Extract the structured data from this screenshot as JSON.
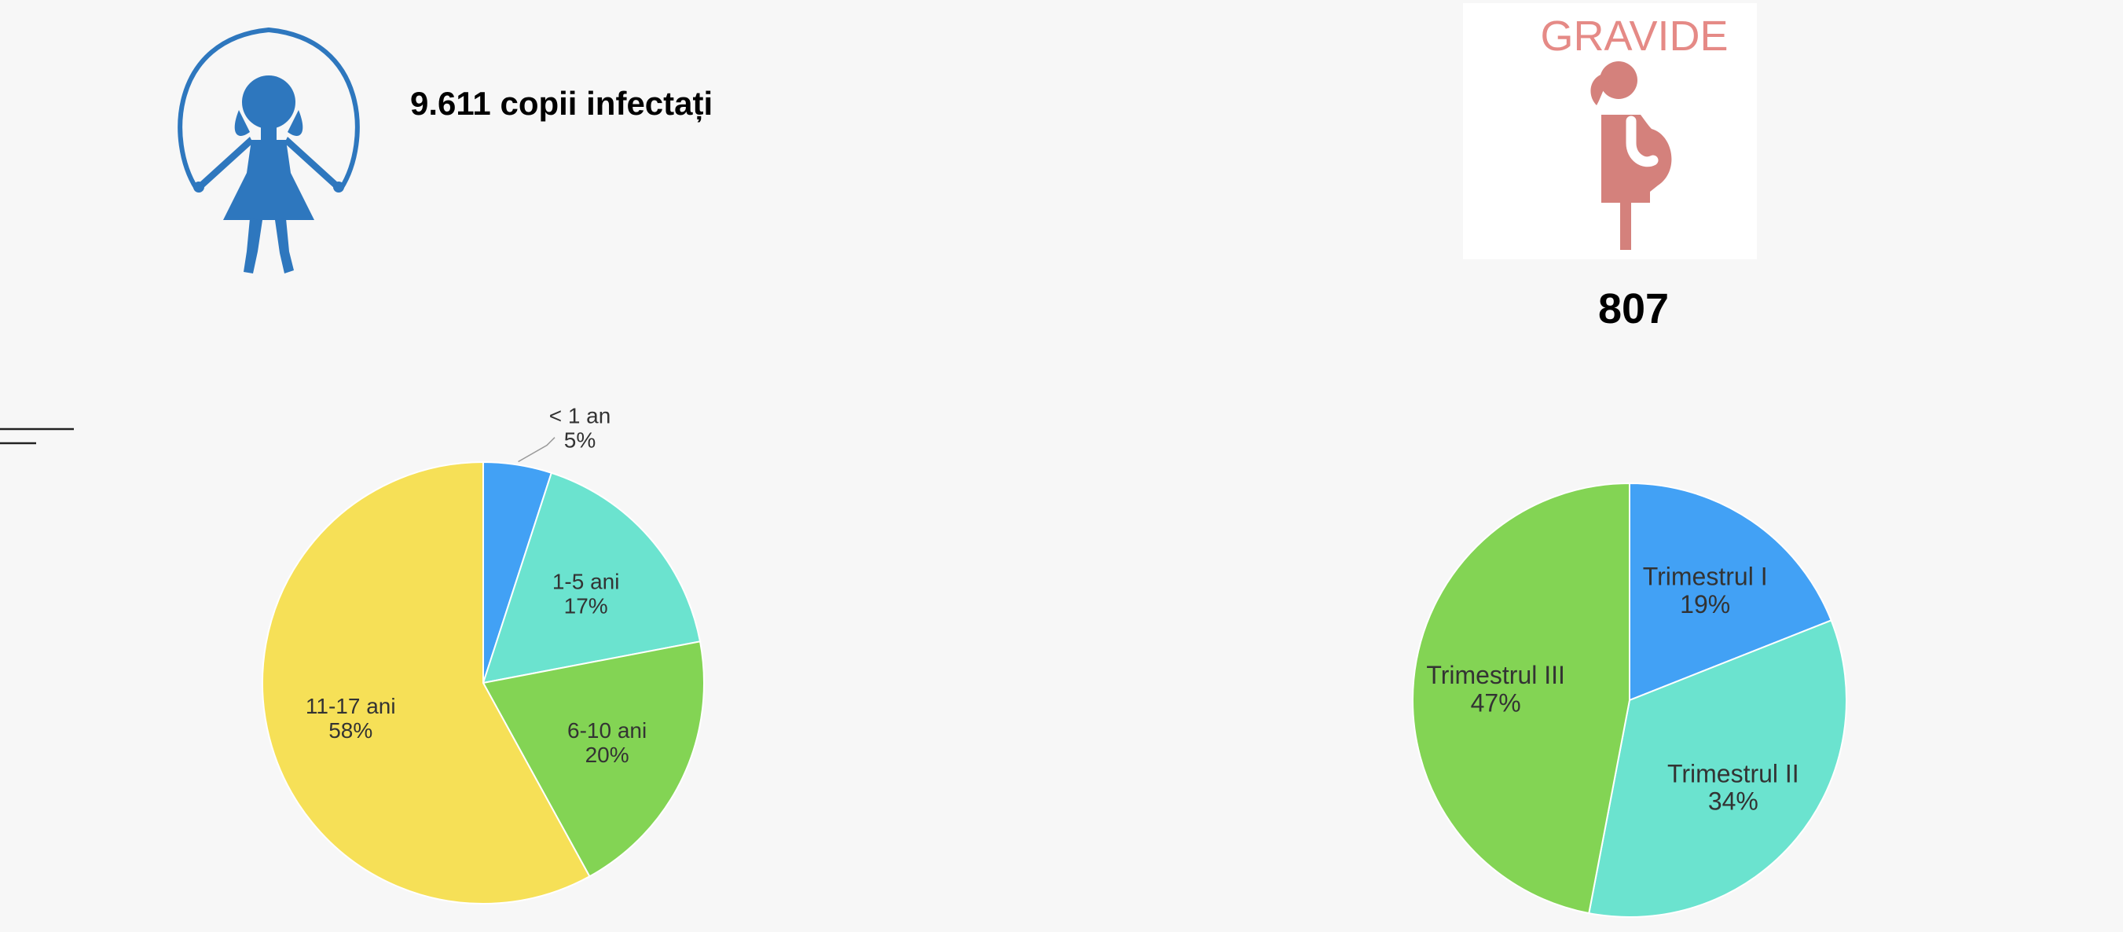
{
  "children": {
    "total_label": "9.611 copii infectați"
  },
  "pregnant": {
    "card_title": "GRAVIDE",
    "total": "807"
  },
  "colors": {
    "blue": "#42a1f5",
    "turquoise": "#6be3cf",
    "green": "#83d454",
    "yellow": "#f6e057",
    "icon_blue": "#2e77be",
    "icon_pink": "#d4817c"
  },
  "icons": [
    "girl-jump-rope-icon",
    "pregnant-woman-icon"
  ],
  "chart_data": [
    {
      "type": "pie",
      "categories": [
        "< 1 an",
        "1-5 ani",
        "6-10 ani",
        "11-17 ani"
      ],
      "values": [
        5,
        17,
        20,
        58
      ],
      "labels": [
        "5%",
        "17%",
        "20%",
        "58%"
      ],
      "colors": [
        "#42a1f5",
        "#6be3cf",
        "#83d454",
        "#f6e057"
      ]
    },
    {
      "type": "pie",
      "categories": [
        "Trimestrul I",
        "Trimestrul II",
        "Trimestrul III"
      ],
      "values": [
        19,
        34,
        47
      ],
      "labels": [
        "19%",
        "34%",
        "47%"
      ],
      "colors": [
        "#42a1f5",
        "#6be3cf",
        "#83d454"
      ]
    }
  ]
}
